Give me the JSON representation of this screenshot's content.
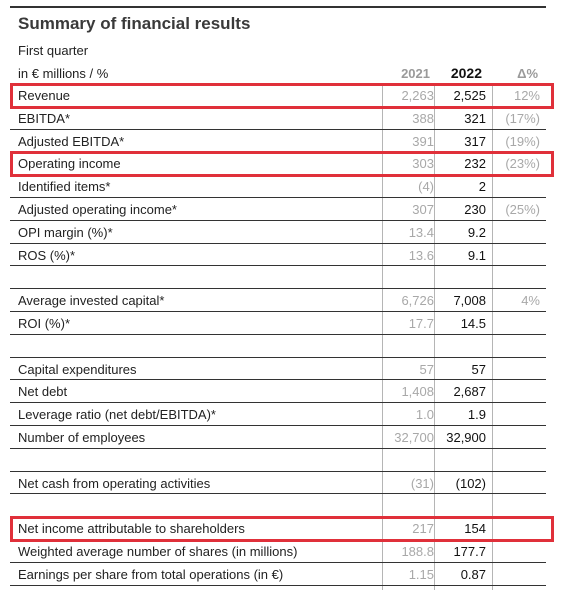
{
  "title": "Summary of financial results",
  "subtitle": "First quarter",
  "unit_label": "in € millions / %",
  "columns": {
    "y2021": "2021",
    "y2022": "2022",
    "delta": "Δ%"
  },
  "rows": [
    {
      "label": "Revenue",
      "v2021": "2,263",
      "v2022": "2,525",
      "delta": "12%",
      "highlight": true
    },
    {
      "label": "EBITDA*",
      "v2021": "388",
      "v2022": "321",
      "delta": "(17%)"
    },
    {
      "label": "Adjusted EBITDA*",
      "v2021": "391",
      "v2022": "317",
      "delta": "(19%)"
    },
    {
      "label": "Operating income",
      "v2021": "303",
      "v2022": "232",
      "delta": "(23%)",
      "highlight": true
    },
    {
      "label": "Identified items*",
      "v2021": "(4)",
      "v2022": "2",
      "delta": ""
    },
    {
      "label": "Adjusted operating income*",
      "v2021": "307",
      "v2022": "230",
      "delta": "(25%)"
    },
    {
      "label": "OPI margin (%)*",
      "v2021": "13.4",
      "v2022": "9.2",
      "delta": ""
    },
    {
      "label": "ROS (%)*",
      "v2021": "13.6",
      "v2022": "9.1",
      "delta": ""
    },
    {
      "blank": true
    },
    {
      "label": "Average invested capital*",
      "v2021": "6,726",
      "v2022": "7,008",
      "delta": "4%"
    },
    {
      "label": "ROI (%)*",
      "v2021": "17.7",
      "v2022": "14.5",
      "delta": ""
    },
    {
      "blank": true
    },
    {
      "label": "Capital expenditures",
      "v2021": "57",
      "v2022": "57",
      "delta": ""
    },
    {
      "label": "Net debt",
      "v2021": "1,408",
      "v2022": "2,687",
      "delta": ""
    },
    {
      "label": "Leverage ratio (net debt/EBITDA)*",
      "v2021": "1.0",
      "v2022": "1.9",
      "delta": ""
    },
    {
      "label": "Number of employees",
      "v2021": "32,700",
      "v2022": "32,900",
      "delta": ""
    },
    {
      "blank": true
    },
    {
      "label": "Net cash from operating activities",
      "v2021": "(31)",
      "v2022": "(102)",
      "delta": ""
    },
    {
      "blank": true
    },
    {
      "label": "Net income attributable to shareholders",
      "v2021": "217",
      "v2022": "154",
      "delta": "",
      "highlight": true
    },
    {
      "label": "Weighted average number of shares (in millions)",
      "v2021": "188.8",
      "v2022": "177.7",
      "delta": ""
    },
    {
      "label": "Earnings per share from total operations (in €)",
      "v2021": "1.15",
      "v2022": "0.87",
      "delta": ""
    }
  ],
  "colors": {
    "highlight": "#e0303a",
    "muted": "#a8a8a8",
    "text": "#222222"
  }
}
